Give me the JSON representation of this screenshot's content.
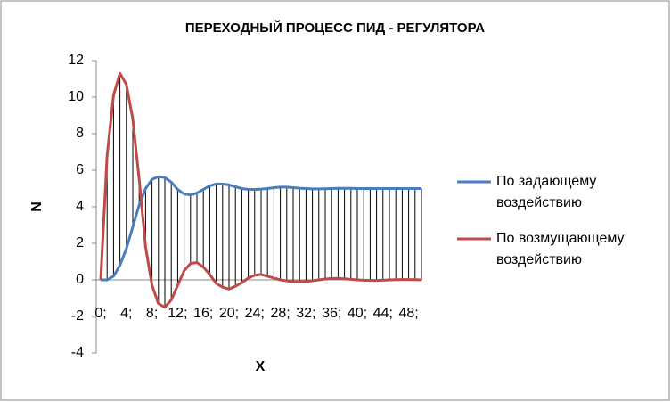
{
  "chart_data": {
    "type": "line",
    "title": "ПЕРЕХОДНЫЙ ПРОЦЕСС ПИД - РЕГУЛЯТОРА",
    "x_label": "X",
    "y_label": "N",
    "categories": [
      "0;",
      null,
      null,
      null,
      "4;",
      null,
      null,
      null,
      "8;",
      null,
      null,
      null,
      "12;",
      null,
      null,
      null,
      "16;",
      null,
      null,
      null,
      "20;",
      null,
      null,
      null,
      "24;",
      null,
      null,
      null,
      "28;",
      null,
      null,
      null,
      "32;",
      null,
      null,
      null,
      "36;",
      null,
      null,
      null,
      "40;",
      null,
      null,
      null,
      "44;",
      null,
      null,
      null,
      "48;",
      null,
      null
    ],
    "series": [
      {
        "name": "По задающему воздействию",
        "color": "#4a7ebb",
        "values": [
          0,
          0,
          0.2,
          0.8,
          1.7,
          2.9,
          4.1,
          5.0,
          5.5,
          5.65,
          5.6,
          5.35,
          4.95,
          4.7,
          4.65,
          4.75,
          4.95,
          5.15,
          5.25,
          5.25,
          5.2,
          5.1,
          5.0,
          4.95,
          4.95,
          4.97,
          5.0,
          5.05,
          5.08,
          5.08,
          5.05,
          5.02,
          5.0,
          4.98,
          4.98,
          4.99,
          5.0,
          5.01,
          5.01,
          5.01,
          5.0,
          5.0,
          5.0,
          5.0,
          5.0,
          5.0,
          5.0,
          5.0,
          5.0,
          5.0,
          5.0
        ]
      },
      {
        "name": "По возмущающему воздействию",
        "color": "#be4b48",
        "values": [
          0,
          6.8,
          10.1,
          11.3,
          10.7,
          8.8,
          5.5,
          1.8,
          -0.3,
          -1.3,
          -1.5,
          -1.1,
          -0.3,
          0.5,
          0.9,
          0.95,
          0.7,
          0.3,
          -0.2,
          -0.4,
          -0.5,
          -0.35,
          -0.15,
          0.1,
          0.25,
          0.3,
          0.2,
          0.1,
          0.0,
          -0.05,
          -0.1,
          -0.1,
          -0.08,
          -0.05,
          0.0,
          0.05,
          0.08,
          0.08,
          0.06,
          0.03,
          0,
          -0.02,
          -0.03,
          -0.03,
          -0.02,
          0,
          0.01,
          0.02,
          0.02,
          0.01,
          0
        ]
      }
    ],
    "ylim": [
      -4,
      12
    ],
    "yticks": [
      -4,
      -2,
      0,
      2,
      4,
      6,
      8,
      10,
      12
    ],
    "high_low_lines": true,
    "grid": false,
    "legend": "right"
  }
}
